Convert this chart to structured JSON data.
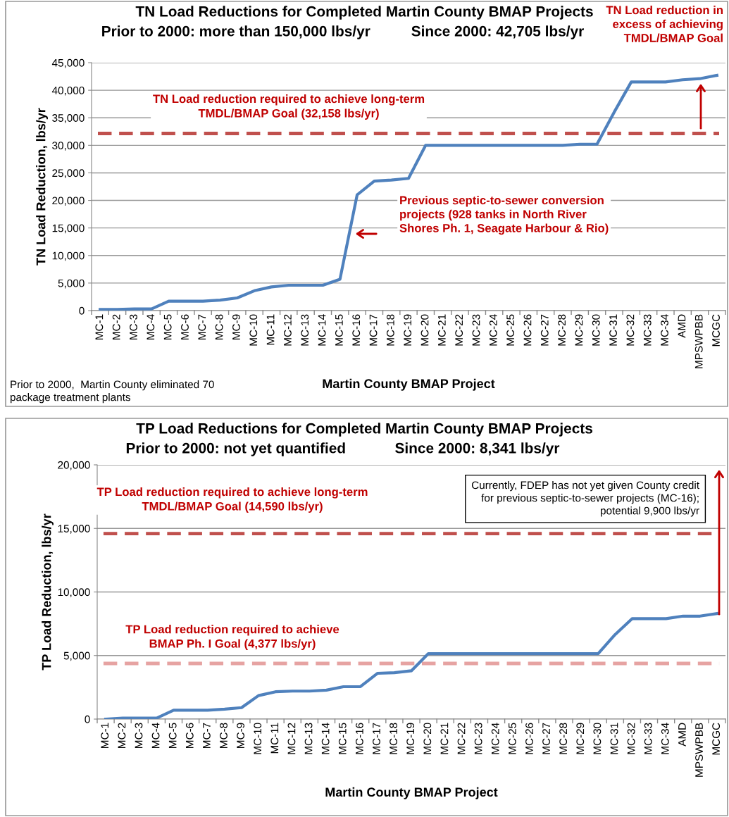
{
  "chart_data": [
    {
      "type": "line",
      "title": "TN Load Reductions for Completed Martin County BMAP Projects",
      "subtitle": "Prior to 2000: more than 150,000 lbs/yr          Since 2000: 42,705 lbs/yr",
      "xlabel": "Martin County BMAP Project",
      "ylabel": "TN Load Reduction, lbs/yr",
      "categories": [
        "MC-1",
        "MC-2",
        "MC-3",
        "MC-4",
        "MC-5",
        "MC-6",
        "MC-7",
        "MC-8",
        "MC-9",
        "MC-10",
        "MC-11",
        "MC-12",
        "MC-13",
        "MC-14",
        "MC-15",
        "MC-16",
        "MC-17",
        "MC-18",
        "MC-19",
        "MC-20",
        "MC-21",
        "MC-22",
        "MC-23",
        "MC-24",
        "MC-25",
        "MC-26",
        "MC-27",
        "MC-28",
        "MC-29",
        "MC-30",
        "MC-31",
        "MC-32",
        "MC-33",
        "MC-34",
        "AMD",
        "MPSWPBB",
        "MCGC"
      ],
      "series": [
        {
          "color": "#4f81bd",
          "values": [
            200,
            200,
            300,
            300,
            1700,
            1700,
            1700,
            1900,
            2300,
            3600,
            4300,
            4600,
            4600,
            4600,
            5700,
            21000,
            23500,
            23700,
            24000,
            30000,
            30000,
            30000,
            30000,
            30000,
            30000,
            30000,
            30000,
            30000,
            30200,
            30200,
            36000,
            41500,
            41500,
            41500,
            41900,
            42100,
            42700
          ]
        }
      ],
      "ylim": [
        0,
        45000
      ],
      "yticks": [
        {
          "value": 0,
          "label": "0"
        },
        {
          "value": 5000,
          "label": "5,000"
        },
        {
          "value": 10000,
          "label": "10,000"
        },
        {
          "value": 15000,
          "label": "15,000"
        },
        {
          "value": 20000,
          "label": "20,000"
        },
        {
          "value": 25000,
          "label": "25,000"
        },
        {
          "value": 30000,
          "label": "30,000"
        },
        {
          "value": 35000,
          "label": "35,000"
        },
        {
          "value": 40000,
          "label": "40,000"
        },
        {
          "value": 45000,
          "label": "45,000"
        }
      ],
      "grid": "y",
      "marker": "none",
      "line_style": "solid",
      "ref_lines": [
        {
          "axis": "y",
          "value": 32158,
          "label": "TN Load reduction required to achieve long-term\nTMDL/BMAP Goal (32,158 lbs/yr)",
          "color": "#c0504d",
          "line_style": "dashed"
        }
      ],
      "annotations": [
        "TN Load reduction in\nexcess of achieving\nTMDL/BMAP Goal",
        "Previous septic-to-sewer conversion\nprojects (928 tanks in North River\nShores Ph. 1, Seagate Harbour & Rio)",
        "Prior to 2000,  Martin County eliminated 70\npackage treatment plants"
      ]
    },
    {
      "type": "line",
      "title": "TP Load Reductions for Completed Martin County BMAP Projects",
      "subtitle": "Prior to 2000: not yet quantified            Since 2000: 8,341 lbs/yr",
      "xlabel": "Martin County BMAP Project",
      "ylabel": "TP Load Reduction, lbs/yr",
      "categories": [
        "MC-1",
        "MC-2",
        "MC-3",
        "MC-4",
        "MC-5",
        "MC-6",
        "MC-7",
        "MC-8",
        "MC-9",
        "MC-10",
        "MC-11",
        "MC-12",
        "MC-13",
        "MC-14",
        "MC-15",
        "MC-16",
        "MC-17",
        "MC-18",
        "MC-19",
        "MC-20",
        "MC-21",
        "MC-22",
        "MC-23",
        "MC-24",
        "MC-25",
        "MC-26",
        "MC-27",
        "MC-28",
        "MC-29",
        "MC-30",
        "MC-31",
        "MC-32",
        "MC-33",
        "MC-34",
        "AMD",
        "MPSWPBB",
        "MCGC"
      ],
      "series": [
        {
          "color": "#4f81bd",
          "values": [
            0,
            80,
            80,
            80,
            700,
            700,
            700,
            780,
            900,
            1850,
            2150,
            2200,
            2200,
            2280,
            2550,
            2550,
            3600,
            3650,
            3800,
            5150,
            5150,
            5150,
            5150,
            5150,
            5150,
            5150,
            5150,
            5150,
            5150,
            5150,
            6650,
            7900,
            7900,
            7900,
            8100,
            8100,
            8300
          ]
        }
      ],
      "ylim": [
        0,
        20000
      ],
      "yticks": [
        {
          "value": 0,
          "label": "0"
        },
        {
          "value": 5000,
          "label": "5,000"
        },
        {
          "value": 10000,
          "label": "10,000"
        },
        {
          "value": 15000,
          "label": "15,000"
        },
        {
          "value": 20000,
          "label": "20,000"
        }
      ],
      "grid": "y",
      "marker": "none",
      "line_style": "solid",
      "ref_lines": [
        {
          "axis": "y",
          "value": 14590,
          "label": "TP Load reduction required to achieve long-term\nTMDL/BMAP Goal (14,590 lbs/yr)",
          "color": "#c0504d",
          "line_style": "dashed"
        },
        {
          "axis": "y",
          "value": 4377,
          "label": "TP Load reduction required to achieve\nBMAP Ph. I Goal (4,377 lbs/yr)",
          "color": "#e6a3a2",
          "line_style": "dashed"
        }
      ],
      "annotations": [
        "Currently, FDEP has not yet given County credit\nfor previous septic-to-sewer projects (MC-16);\npotential 9,900 lbs/yr"
      ]
    }
  ]
}
